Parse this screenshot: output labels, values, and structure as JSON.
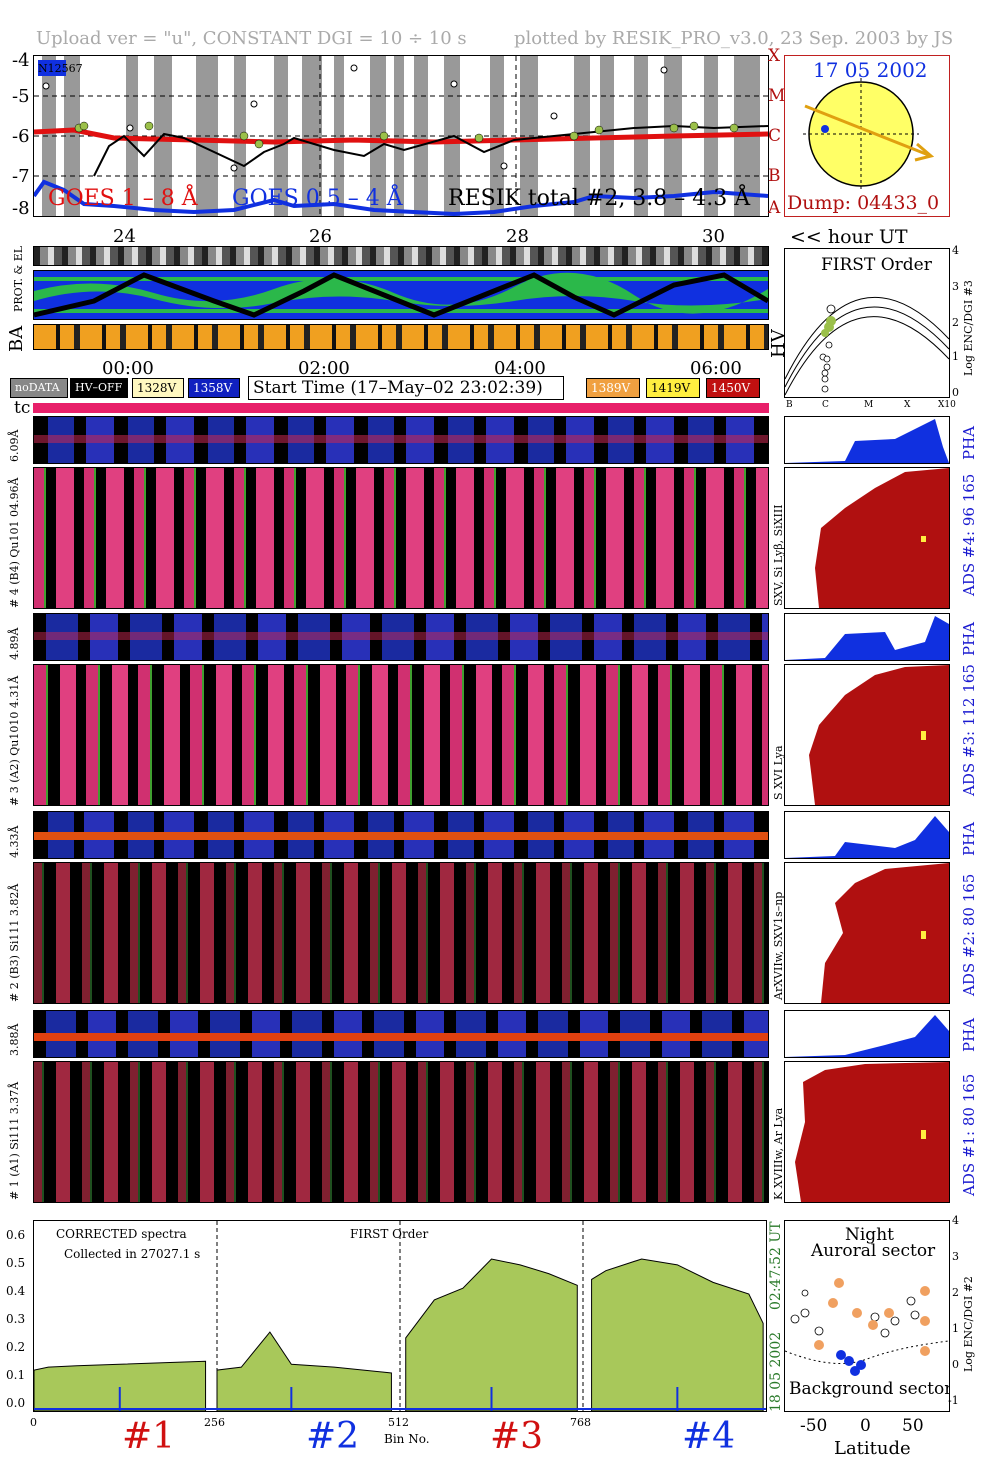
{
  "header": {
    "left": "Upload ver = \"u\", CONSTANT  DGI =  10 ÷  10 s",
    "right": "plotted by RESIK_PRO_v3.0, 23 Sep. 2003 by JS"
  },
  "goes_panel": {
    "y_ticks": [
      "-4",
      "-5",
      "-6",
      "-7",
      "-8"
    ],
    "x_ticks": [
      "24",
      "26",
      "28",
      "30"
    ],
    "noaa_tag": "N12567",
    "legend_goes_long": "GOES 1 – 8 Å",
    "legend_goes_short": "GOES 0.5 – 4 Å",
    "legend_resik": "RESIK total #2, 3.8 – 4.3 Å",
    "class_letters": [
      "X",
      "M",
      "C",
      "B",
      "A"
    ],
    "axis_unit": "<< hour UT",
    "colors": {
      "goes_long": "#e01010",
      "goes_short": "#1030e0",
      "resik": "#000000",
      "marker": "#9bc04a"
    }
  },
  "sun_panel": {
    "date": "17 05 2002",
    "dump": "Dump: 04433_0",
    "colors": {
      "disk": "#ffff66",
      "arrow": "#e0a010",
      "dot": "#1030e0"
    }
  },
  "status_panel": {
    "labels": [
      "PROT. & EL",
      "BA"
    ],
    "hv_label": "HV",
    "time_ticks": [
      "00:00",
      "02:00",
      "04:00",
      "06:00"
    ]
  },
  "first_order_panel": {
    "title": "FIRST Order",
    "y_label": "Log ENC/DGI #3",
    "y_ticks": [
      "4",
      "3",
      "2",
      "1",
      "0"
    ],
    "x_ticks": [
      "B",
      "C",
      "M",
      "X",
      "X10"
    ]
  },
  "legend_bar": {
    "nodata": "noDATA",
    "hvoff": "HV–OFF",
    "v1328": "1328V",
    "v1358": "1358V",
    "start_time": "Start Time (17–May–02 23:02:39)",
    "v1389": "1389V",
    "v1419": "1419V",
    "v1450": "1450V",
    "tc": "tc",
    "colors": {
      "v1328": "#fff8c0",
      "v1358": "#1020c0",
      "v1389": "#f0a040",
      "v1419": "#ffee40",
      "v1450": "#c01010"
    }
  },
  "channels": [
    {
      "pha_label": "6.09Å",
      "spec_label": "# 4 (B4) Qu101 04.96Å",
      "right_line": "SXV, Si Lyβ, SiXIII",
      "ads": "ADS #4:   96 165",
      "pha": "PHA"
    },
    {
      "pha_label": "4.89Å",
      "spec_label": "# 3 (A2) Qu1010 4.31Å",
      "right_line": "S XVI Lya",
      "ads": "ADS #3:   112 165",
      "pha": "PHA"
    },
    {
      "pha_label": "4.33Å",
      "spec_label": "# 2 (B3) Si111  3.82Å",
      "right_line": "ArXVIIw, SXV1s–np",
      "ads": "ADS #2:   80 165",
      "pha": "PHA"
    },
    {
      "pha_label": "3.88Å",
      "spec_label": "# 1 (A1) Si111  3.37Å",
      "right_line": "K XVIIIw, Ar Lya",
      "ads": "ADS #1:   80 165",
      "pha": "PHA"
    }
  ],
  "spectrum_panel": {
    "note1": "CORRECTED spectra",
    "note2": "Collected in 27027.1 s",
    "order": "FIRST Order",
    "x_label": "Bin No.",
    "x_ticks": [
      "0",
      "256",
      "512",
      "768"
    ],
    "y_ticks": [
      "0.0",
      "0.1",
      "0.2",
      "0.3",
      "0.4",
      "0.5",
      "0.6"
    ],
    "channel_labels": [
      "#1",
      "#2",
      "#3",
      "#4"
    ],
    "date_side": "18 05 2002",
    "time_side": "02:47:52 UT"
  },
  "latitude_panel": {
    "night": "Night",
    "auroral": "Auroral sector",
    "background": "Background sector",
    "x_label": "Latitude",
    "x_ticks": [
      "-50",
      "0",
      "50"
    ],
    "y_label": "Log ENC/DGI #2",
    "y_ticks": [
      "4",
      "3",
      "2",
      "1",
      "0",
      "-1"
    ]
  },
  "chart_data": {
    "type": "area",
    "title": "CORRECTED spectra",
    "xlabel": "Bin No.",
    "ylabel": "",
    "xlim": [
      0,
      1024
    ],
    "ylim": [
      0,
      0.65
    ],
    "series": [
      {
        "name": "#1",
        "x": [
          0,
          20,
          60,
          120,
          180,
          240
        ],
        "values": [
          0.14,
          0.15,
          0.155,
          0.16,
          0.165,
          0.17
        ]
      },
      {
        "name": "#2",
        "x": [
          256,
          290,
          330,
          360,
          420,
          500
        ],
        "values": [
          0.14,
          0.15,
          0.27,
          0.16,
          0.15,
          0.13
        ]
      },
      {
        "name": "#3",
        "x": [
          520,
          560,
          600,
          640,
          680,
          720,
          760
        ],
        "values": [
          0.25,
          0.38,
          0.42,
          0.52,
          0.5,
          0.47,
          0.43
        ]
      },
      {
        "name": "#4",
        "x": [
          780,
          800,
          850,
          900,
          950,
          1000,
          1020
        ],
        "values": [
          0.45,
          0.48,
          0.52,
          0.5,
          0.44,
          0.4,
          0.3
        ]
      }
    ],
    "annotations": [
      "FIRST Order",
      "Collected in 27027.1 s"
    ]
  }
}
